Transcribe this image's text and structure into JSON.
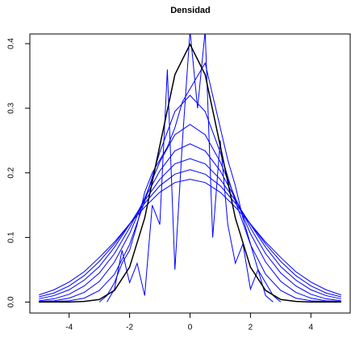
{
  "chart_data": {
    "type": "line",
    "title": "Densidad",
    "x": [
      -5,
      -4.5,
      -4,
      -3.5,
      -3,
      -2.5,
      -2,
      -1.5,
      -1,
      -0.5,
      0,
      0.5,
      1,
      1.5,
      2,
      2.5,
      3,
      3.5,
      4,
      4.5,
      5
    ],
    "series": [
      {
        "color": "#0000ff",
        "values": [
          0.011,
          0.019,
          0.031,
          0.047,
          0.069,
          0.093,
          0.121,
          0.147,
          0.17,
          0.185,
          0.19,
          0.185,
          0.17,
          0.147,
          0.121,
          0.093,
          0.069,
          0.047,
          0.031,
          0.019,
          0.011
        ]
      },
      {
        "color": "#0000ff",
        "values": [
          0.008,
          0.014,
          0.025,
          0.041,
          0.063,
          0.09,
          0.121,
          0.153,
          0.18,
          0.198,
          0.205,
          0.198,
          0.18,
          0.153,
          0.121,
          0.09,
          0.063,
          0.041,
          0.025,
          0.014,
          0.008
        ]
      },
      {
        "color": "#0000ff",
        "values": [
          0.005,
          0.01,
          0.019,
          0.034,
          0.055,
          0.085,
          0.12,
          0.157,
          0.19,
          0.214,
          0.222,
          0.214,
          0.19,
          0.157,
          0.12,
          0.085,
          0.055,
          0.034,
          0.019,
          0.01,
          0.005
        ]
      },
      {
        "color": "#0000ff",
        "values": [
          0.002,
          0.005,
          0.012,
          0.025,
          0.045,
          0.075,
          0.115,
          0.16,
          0.203,
          0.234,
          0.245,
          0.234,
          0.203,
          0.16,
          0.115,
          0.075,
          0.045,
          0.025,
          0.012,
          0.005,
          0.002
        ]
      },
      {
        "color": "#0000ff",
        "values": [
          0.001,
          0.002,
          0.006,
          0.015,
          0.032,
          0.062,
          0.106,
          0.161,
          0.217,
          0.259,
          0.275,
          0.259,
          0.217,
          0.161,
          0.106,
          0.062,
          0.032,
          0.015,
          0.006,
          0.002,
          0.001
        ]
      },
      {
        "color": "#0000ff",
        "values": [
          0,
          0.001,
          0.002,
          0.006,
          0.018,
          0.043,
          0.089,
          0.156,
          0.232,
          0.295,
          0.32,
          0.295,
          0.232,
          0.156,
          0.089,
          0.043,
          0.018,
          0.006,
          0.002,
          0.001,
          0
        ]
      },
      {
        "color": "#0000ff",
        "x": [
          -2.75,
          -2.5,
          -2.25,
          -2,
          -1.75,
          -1.5,
          -1.25,
          -1,
          -0.75,
          -0.5,
          -0.25,
          0,
          0.25,
          0.5,
          0.75,
          1,
          1.25,
          1.5,
          1.75,
          2,
          2.25,
          2.5,
          2.75
        ],
        "values": [
          0,
          0.02,
          0.08,
          0.03,
          0.06,
          0.01,
          0.15,
          0.12,
          0.36,
          0.05,
          0.25,
          0.42,
          0.3,
          0.42,
          0.1,
          0.25,
          0.12,
          0.06,
          0.09,
          0.02,
          0.05,
          0.01,
          0
        ]
      },
      {
        "color": "#0000ff",
        "x": [
          -3,
          -2.75,
          -2.5,
          -2.25,
          -2,
          -1.75,
          -1.5,
          -1.25,
          -1,
          -0.75,
          -0.5,
          -0.25,
          0,
          0.25,
          0.5,
          0.75,
          1,
          1.25,
          1.5,
          1.75,
          2,
          2.25,
          2.5,
          2.75,
          3
        ],
        "values": [
          0,
          0.01,
          0.03,
          0.06,
          0.08,
          0.12,
          0.17,
          0.2,
          0.22,
          0.24,
          0.27,
          0.31,
          0.33,
          0.35,
          0.37,
          0.32,
          0.27,
          0.22,
          0.18,
          0.13,
          0.09,
          0.05,
          0.03,
          0.01,
          0
        ]
      },
      {
        "color": "#000000",
        "values": [
          0,
          0,
          0,
          0.001,
          0.004,
          0.018,
          0.054,
          0.13,
          0.242,
          0.352,
          0.399,
          0.352,
          0.242,
          0.13,
          0.054,
          0.018,
          0.004,
          0.001,
          0,
          0,
          0
        ]
      }
    ],
    "xlim": [
      -5.3,
      5.3
    ],
    "ylim": [
      -0.017,
      0.415
    ],
    "xticks": [
      -4,
      -2,
      0,
      2,
      4
    ],
    "yticks": [
      {
        "value": 0,
        "label": "0.0"
      },
      0.1,
      0.2,
      0.3,
      0.4
    ]
  }
}
